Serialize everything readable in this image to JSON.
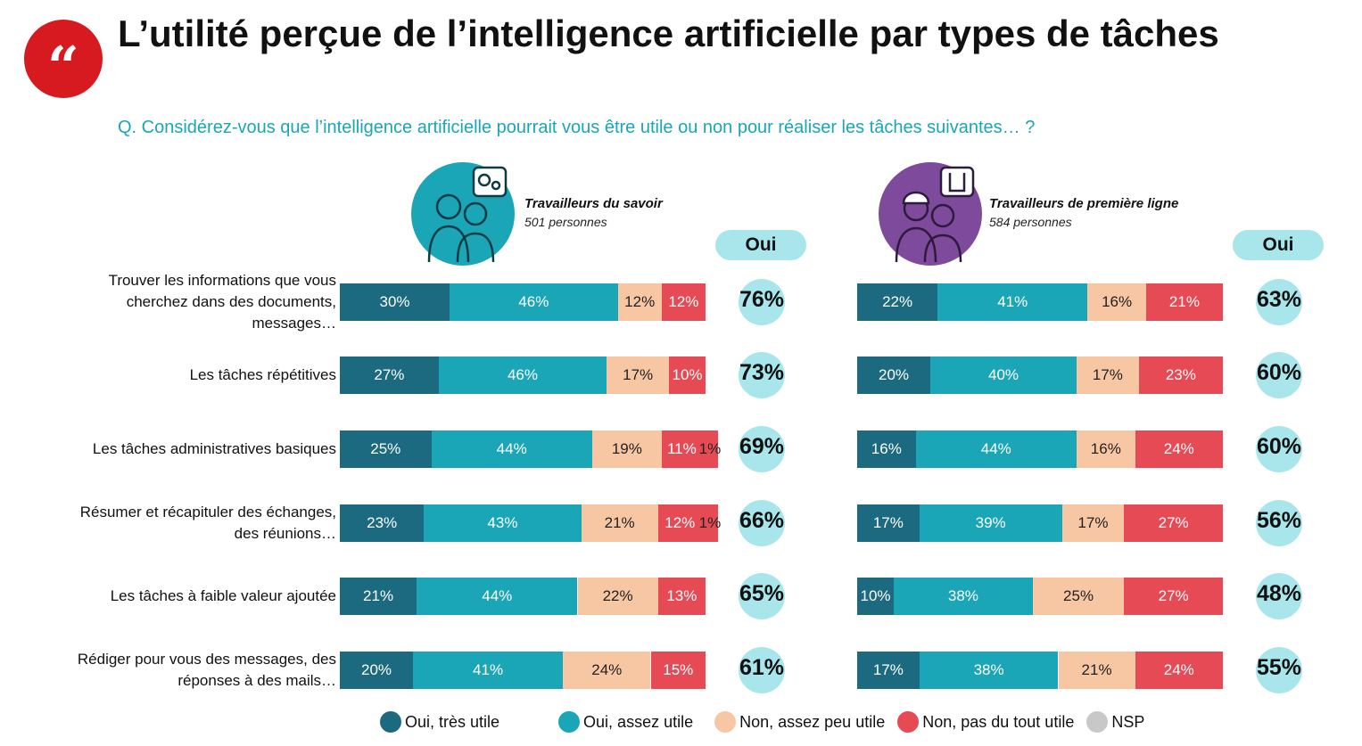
{
  "header": {
    "title": "L’utilité perçue de l’intelligence artificielle par types de tâches",
    "question": "Q. Considérez-vous que l’intelligence artificielle pourrait vous être utile ou non pour réaliser les tâches suivantes… ?",
    "quote_mark": "“"
  },
  "groups": [
    {
      "name": "Travailleurs du savoir",
      "count": "501 personnes",
      "oui_label": "Oui",
      "icon": "knowledge-workers-icon"
    },
    {
      "name": "Travailleurs de première ligne",
      "count": "584 personnes",
      "oui_label": "Oui",
      "icon": "frontline-workers-icon"
    }
  ],
  "colors": {
    "tres_utile": "#1c6a80",
    "assez_utile": "#1aa6b7",
    "assez_peu_utile": "#f7c6a3",
    "pas_du_tout": "#e64a55",
    "nsp": "#c8c8c8",
    "oui_bubble": "#a8e6ec"
  },
  "chart_data": {
    "type": "bar",
    "orientation": "horizontal",
    "stacked": true,
    "title": "L’utilité perçue de l’intelligence artificielle par types de tâches",
    "categories": [
      "Trouver les informations que vous cherchez dans des documents, messages…",
      "Les tâches répétitives",
      "Les tâches administratives basiques",
      "Résumer et récapituler des échanges, des réunions…",
      "Les tâches à faible valeur ajoutée",
      "Rédiger pour vous des messages, des réponses à des mails…"
    ],
    "label_lines": [
      [
        "Trouver les informations que vous",
        "cherchez dans des documents,",
        "messages…"
      ],
      [
        "Les tâches répétitives"
      ],
      [
        "Les tâches administratives basiques"
      ],
      [
        "Résumer et récapituler des échanges,",
        "des réunions…"
      ],
      [
        "Les tâches à faible valeur ajoutée"
      ],
      [
        "Rédiger pour vous des messages, des",
        "réponses à des mails…"
      ]
    ],
    "legend": [
      "Oui, très utile",
      "Oui, assez utile",
      "Non, assez peu utile",
      "Non, pas du tout utile",
      "NSP"
    ],
    "legend_colors": [
      "#1c6a80",
      "#1aa6b7",
      "#f7c6a3",
      "#e64a55",
      "#c8c8c8"
    ],
    "panels": [
      {
        "group": "Travailleurs du savoir",
        "series": [
          {
            "name": "Oui, très utile",
            "values": [
              30,
              27,
              25,
              23,
              21,
              20
            ]
          },
          {
            "name": "Oui, assez utile",
            "values": [
              46,
              46,
              44,
              43,
              44,
              41
            ]
          },
          {
            "name": "Non, assez peu utile",
            "values": [
              12,
              17,
              19,
              21,
              22,
              24
            ]
          },
          {
            "name": "Non, pas du tout utile",
            "values": [
              12,
              10,
              11,
              12,
              13,
              15
            ]
          },
          {
            "name": "NSP",
            "values": [
              0,
              0,
              1,
              1,
              0,
              0
            ]
          }
        ],
        "oui_total": [
          76,
          73,
          69,
          66,
          65,
          61
        ]
      },
      {
        "group": "Travailleurs de première ligne",
        "series": [
          {
            "name": "Oui, très utile",
            "values": [
              22,
              20,
              16,
              17,
              10,
              17
            ]
          },
          {
            "name": "Oui, assez utile",
            "values": [
              41,
              40,
              44,
              39,
              38,
              38
            ]
          },
          {
            "name": "Non, assez peu utile",
            "values": [
              16,
              17,
              16,
              17,
              25,
              21
            ]
          },
          {
            "name": "Non, pas du tout utile",
            "values": [
              21,
              23,
              24,
              27,
              27,
              24
            ]
          },
          {
            "name": "NSP",
            "values": [
              0,
              0,
              0,
              0,
              0,
              0
            ]
          }
        ],
        "oui_total": [
          63,
          60,
          60,
          56,
          48,
          55
        ]
      }
    ],
    "unit": "%"
  }
}
